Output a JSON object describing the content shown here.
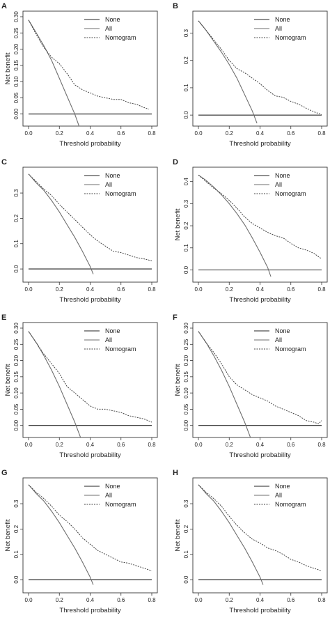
{
  "chart_data": [
    {
      "panel": "A",
      "type": "line",
      "xlabel": "Threshold probability",
      "ylabel": "Net benefit",
      "xlim": [
        0,
        0.8
      ],
      "ylim": [
        -0.02,
        0.3
      ],
      "xticks": [
        0.0,
        0.2,
        0.4,
        0.6,
        0.8
      ],
      "xtick_labels": [
        "0.0",
        "0.2",
        "0.4",
        "0.6",
        "0.8"
      ],
      "yticks": [
        0.0,
        0.05,
        0.1,
        0.15,
        0.2,
        0.25,
        0.3
      ],
      "ytick_labels": [
        "0.00",
        "0.05",
        "0.10",
        "0.15",
        "0.20",
        "0.25",
        "0.30"
      ],
      "legend": "top-right",
      "series": [
        {
          "name": "None",
          "style": "solid",
          "x": [
            0.0,
            0.8
          ],
          "y": [
            0.0,
            0.0
          ]
        },
        {
          "name": "All",
          "style": "solid-gray",
          "x": [
            0.0,
            0.05,
            0.1,
            0.15,
            0.2,
            0.25,
            0.3,
            0.33
          ],
          "y": [
            0.29,
            0.25,
            0.21,
            0.165,
            0.11,
            0.055,
            0.0,
            -0.04
          ]
        },
        {
          "name": "Nomogram",
          "style": "dashed",
          "x": [
            0.0,
            0.05,
            0.1,
            0.15,
            0.2,
            0.25,
            0.3,
            0.35,
            0.4,
            0.45,
            0.5,
            0.55,
            0.6,
            0.65,
            0.7,
            0.75,
            0.78
          ],
          "y": [
            0.29,
            0.245,
            0.205,
            0.175,
            0.155,
            0.125,
            0.09,
            0.075,
            0.065,
            0.055,
            0.05,
            0.045,
            0.045,
            0.035,
            0.03,
            0.02,
            0.015
          ]
        }
      ]
    },
    {
      "panel": "B",
      "type": "line",
      "xlabel": "Threshold probability",
      "ylabel": "",
      "xlim": [
        0,
        0.8
      ],
      "ylim": [
        -0.02,
        0.36
      ],
      "xticks": [
        0.0,
        0.2,
        0.4,
        0.6,
        0.8
      ],
      "xtick_labels": [
        "0.0",
        "0.2",
        "0.4",
        "0.6",
        "0.8"
      ],
      "yticks": [
        0.0,
        0.1,
        0.2,
        0.3
      ],
      "ytick_labels": [
        "0.0",
        "0.1",
        "0.2",
        "0.3"
      ],
      "legend": "top-right",
      "series": [
        {
          "name": "None",
          "style": "solid",
          "x": [
            0.0,
            0.8
          ],
          "y": [
            0.0,
            0.0
          ]
        },
        {
          "name": "All",
          "style": "solid-gray",
          "x": [
            0.0,
            0.05,
            0.1,
            0.15,
            0.2,
            0.25,
            0.3,
            0.35,
            0.38
          ],
          "y": [
            0.345,
            0.31,
            0.27,
            0.23,
            0.185,
            0.135,
            0.075,
            0.015,
            -0.03
          ]
        },
        {
          "name": "Nomogram",
          "style": "dashed",
          "x": [
            0.0,
            0.05,
            0.1,
            0.15,
            0.2,
            0.25,
            0.3,
            0.35,
            0.4,
            0.45,
            0.5,
            0.55,
            0.6,
            0.65,
            0.7,
            0.75,
            0.8
          ],
          "y": [
            0.345,
            0.31,
            0.275,
            0.24,
            0.2,
            0.17,
            0.155,
            0.135,
            0.115,
            0.09,
            0.07,
            0.065,
            0.05,
            0.04,
            0.025,
            0.012,
            0.002
          ]
        }
      ]
    },
    {
      "panel": "C",
      "type": "line",
      "xlabel": "Threshold probability",
      "ylabel": "",
      "xlim": [
        0,
        0.8
      ],
      "ylim": [
        -0.03,
        0.38
      ],
      "xticks": [
        0.0,
        0.2,
        0.4,
        0.6,
        0.8
      ],
      "xtick_labels": [
        "0.0",
        "0.2",
        "0.4",
        "0.6",
        "0.8"
      ],
      "yticks": [
        0.0,
        0.1,
        0.2,
        0.3
      ],
      "ytick_labels": [
        "0.0",
        "0.1",
        "0.2",
        "0.3"
      ],
      "legend": "top-right",
      "series": [
        {
          "name": "None",
          "style": "solid",
          "x": [
            0.0,
            0.8
          ],
          "y": [
            0.0,
            0.0
          ]
        },
        {
          "name": "All",
          "style": "solid-gray",
          "x": [
            0.0,
            0.05,
            0.1,
            0.15,
            0.2,
            0.25,
            0.3,
            0.35,
            0.4,
            0.42
          ],
          "y": [
            0.375,
            0.34,
            0.31,
            0.27,
            0.225,
            0.175,
            0.125,
            0.07,
            0.01,
            -0.02
          ]
        },
        {
          "name": "Nomogram",
          "style": "dashed",
          "x": [
            0.0,
            0.05,
            0.1,
            0.15,
            0.2,
            0.25,
            0.3,
            0.35,
            0.4,
            0.45,
            0.5,
            0.55,
            0.6,
            0.65,
            0.7,
            0.75,
            0.8
          ],
          "y": [
            0.375,
            0.345,
            0.315,
            0.29,
            0.255,
            0.225,
            0.195,
            0.165,
            0.135,
            0.11,
            0.09,
            0.07,
            0.065,
            0.055,
            0.045,
            0.04,
            0.032
          ]
        }
      ]
    },
    {
      "panel": "D",
      "type": "line",
      "xlabel": "Threshold probability",
      "ylabel": "Net benefit",
      "xlim": [
        0,
        0.8
      ],
      "ylim": [
        -0.03,
        0.44
      ],
      "xticks": [
        0.0,
        0.2,
        0.4,
        0.6,
        0.8
      ],
      "xtick_labels": [
        "0.0",
        "0.2",
        "0.4",
        "0.6",
        "0.8"
      ],
      "yticks": [
        0.0,
        0.1,
        0.2,
        0.3,
        0.4
      ],
      "ytick_labels": [
        "0.0",
        "0.1",
        "0.2",
        "0.3",
        "0.4"
      ],
      "legend": "top-right",
      "series": [
        {
          "name": "None",
          "style": "solid",
          "x": [
            0.0,
            0.8
          ],
          "y": [
            0.0,
            0.0
          ]
        },
        {
          "name": "All",
          "style": "solid-gray",
          "x": [
            0.0,
            0.05,
            0.1,
            0.15,
            0.2,
            0.25,
            0.3,
            0.35,
            0.4,
            0.45,
            0.47
          ],
          "y": [
            0.43,
            0.405,
            0.375,
            0.34,
            0.3,
            0.255,
            0.205,
            0.145,
            0.08,
            0.01,
            -0.03
          ]
        },
        {
          "name": "Nomogram",
          "style": "dashed",
          "x": [
            0.0,
            0.05,
            0.1,
            0.15,
            0.2,
            0.25,
            0.3,
            0.35,
            0.4,
            0.45,
            0.5,
            0.55,
            0.6,
            0.65,
            0.7,
            0.75,
            0.8
          ],
          "y": [
            0.43,
            0.4,
            0.37,
            0.345,
            0.315,
            0.28,
            0.24,
            0.21,
            0.19,
            0.17,
            0.155,
            0.145,
            0.12,
            0.1,
            0.09,
            0.075,
            0.05
          ]
        }
      ]
    },
    {
      "panel": "E",
      "type": "line",
      "xlabel": "Threshold probability",
      "ylabel": "Net benefit",
      "xlim": [
        0,
        0.8
      ],
      "ylim": [
        -0.02,
        0.3
      ],
      "xticks": [
        0.0,
        0.2,
        0.4,
        0.6,
        0.8
      ],
      "xtick_labels": [
        "0.0",
        "0.2",
        "0.4",
        "0.6",
        "0.8"
      ],
      "yticks": [
        0.0,
        0.05,
        0.1,
        0.15,
        0.2,
        0.25,
        0.3
      ],
      "ytick_labels": [
        "0.00",
        "0.05",
        "0.10",
        "0.15",
        "0.20",
        "0.25",
        "0.30"
      ],
      "legend": "top-right",
      "series": [
        {
          "name": "None",
          "style": "solid",
          "x": [
            0.0,
            0.8
          ],
          "y": [
            0.0,
            0.0
          ]
        },
        {
          "name": "All",
          "style": "solid-gray",
          "x": [
            0.0,
            0.05,
            0.1,
            0.15,
            0.2,
            0.25,
            0.3,
            0.34
          ],
          "y": [
            0.29,
            0.255,
            0.215,
            0.17,
            0.12,
            0.065,
            0.01,
            -0.04
          ]
        },
        {
          "name": "Nomogram",
          "style": "dashed",
          "x": [
            0.0,
            0.05,
            0.1,
            0.15,
            0.2,
            0.25,
            0.3,
            0.35,
            0.4,
            0.45,
            0.5,
            0.55,
            0.6,
            0.65,
            0.7,
            0.75,
            0.8
          ],
          "y": [
            0.29,
            0.255,
            0.22,
            0.19,
            0.16,
            0.12,
            0.1,
            0.08,
            0.06,
            0.05,
            0.05,
            0.045,
            0.04,
            0.03,
            0.025,
            0.02,
            0.01
          ]
        }
      ]
    },
    {
      "panel": "F",
      "type": "line",
      "xlabel": "Threshold probability",
      "ylabel": "Net benefit",
      "xlim": [
        0,
        0.8
      ],
      "ylim": [
        -0.02,
        0.3
      ],
      "xticks": [
        0.0,
        0.2,
        0.4,
        0.6,
        0.8
      ],
      "xtick_labels": [
        "0.0",
        "0.2",
        "0.4",
        "0.6",
        "0.8"
      ],
      "yticks": [
        0.0,
        0.05,
        0.1,
        0.15,
        0.2,
        0.25,
        0.3
      ],
      "ytick_labels": [
        "0.00",
        "0.05",
        "0.10",
        "0.15",
        "0.20",
        "0.25",
        "0.30"
      ],
      "legend": "top-right",
      "series": [
        {
          "name": "None",
          "style": "solid",
          "x": [
            0.0,
            0.8
          ],
          "y": [
            0.0,
            0.0
          ]
        },
        {
          "name": "All",
          "style": "solid-gray",
          "x": [
            0.0,
            0.05,
            0.1,
            0.15,
            0.2,
            0.25,
            0.3,
            0.34
          ],
          "y": [
            0.29,
            0.255,
            0.215,
            0.17,
            0.12,
            0.065,
            0.01,
            -0.04
          ]
        },
        {
          "name": "Nomogram",
          "style": "dashed",
          "x": [
            0.0,
            0.05,
            0.1,
            0.15,
            0.2,
            0.25,
            0.3,
            0.35,
            0.4,
            0.45,
            0.5,
            0.55,
            0.6,
            0.65,
            0.7,
            0.75,
            0.78,
            0.8
          ],
          "y": [
            0.29,
            0.255,
            0.225,
            0.19,
            0.15,
            0.125,
            0.11,
            0.095,
            0.085,
            0.075,
            0.06,
            0.05,
            0.04,
            0.03,
            0.015,
            0.01,
            0.005,
            0.015
          ]
        }
      ]
    },
    {
      "panel": "G",
      "type": "line",
      "xlabel": "Threshold probability",
      "ylabel": "Net benefit",
      "xlim": [
        0,
        0.8
      ],
      "ylim": [
        -0.03,
        0.38
      ],
      "xticks": [
        0.0,
        0.2,
        0.4,
        0.6,
        0.8
      ],
      "xtick_labels": [
        "0.0",
        "0.2",
        "0.4",
        "0.6",
        "0.8"
      ],
      "yticks": [
        0.0,
        0.1,
        0.2,
        0.3
      ],
      "ytick_labels": [
        "0.0",
        "0.1",
        "0.2",
        "0.3"
      ],
      "legend": "top-right",
      "series": [
        {
          "name": "None",
          "style": "solid",
          "x": [
            0.0,
            0.8
          ],
          "y": [
            0.0,
            0.0
          ]
        },
        {
          "name": "All",
          "style": "solid-gray",
          "x": [
            0.0,
            0.05,
            0.1,
            0.15,
            0.2,
            0.25,
            0.3,
            0.35,
            0.4,
            0.42
          ],
          "y": [
            0.375,
            0.34,
            0.31,
            0.27,
            0.225,
            0.175,
            0.125,
            0.07,
            0.01,
            -0.02
          ]
        },
        {
          "name": "Nomogram",
          "style": "dashed",
          "x": [
            0.0,
            0.05,
            0.1,
            0.15,
            0.2,
            0.25,
            0.3,
            0.35,
            0.4,
            0.45,
            0.5,
            0.55,
            0.6,
            0.65,
            0.7,
            0.75,
            0.8
          ],
          "y": [
            0.375,
            0.345,
            0.32,
            0.29,
            0.255,
            0.23,
            0.2,
            0.165,
            0.14,
            0.115,
            0.1,
            0.085,
            0.07,
            0.065,
            0.055,
            0.045,
            0.035
          ]
        }
      ]
    },
    {
      "panel": "H",
      "type": "line",
      "xlabel": "Threshold probability",
      "ylabel": "Net benefit",
      "xlim": [
        0,
        0.8
      ],
      "ylim": [
        -0.03,
        0.38
      ],
      "xticks": [
        0.0,
        0.2,
        0.4,
        0.6,
        0.8
      ],
      "xtick_labels": [
        "0.0",
        "0.2",
        "0.4",
        "0.6",
        "0.8"
      ],
      "yticks": [
        0.0,
        0.1,
        0.2,
        0.3
      ],
      "ytick_labels": [
        "0.0",
        "0.1",
        "0.2",
        "0.3"
      ],
      "legend": "top-right",
      "series": [
        {
          "name": "None",
          "style": "solid",
          "x": [
            0.0,
            0.8
          ],
          "y": [
            0.0,
            0.0
          ]
        },
        {
          "name": "All",
          "style": "solid-gray",
          "x": [
            0.0,
            0.05,
            0.1,
            0.15,
            0.2,
            0.25,
            0.3,
            0.35,
            0.4,
            0.42
          ],
          "y": [
            0.375,
            0.34,
            0.31,
            0.27,
            0.225,
            0.175,
            0.125,
            0.07,
            0.01,
            -0.02
          ]
        },
        {
          "name": "Nomogram",
          "style": "dashed",
          "x": [
            0.0,
            0.05,
            0.1,
            0.15,
            0.2,
            0.25,
            0.3,
            0.35,
            0.4,
            0.45,
            0.5,
            0.55,
            0.6,
            0.65,
            0.7,
            0.75,
            0.8
          ],
          "y": [
            0.375,
            0.345,
            0.32,
            0.29,
            0.25,
            0.215,
            0.185,
            0.16,
            0.145,
            0.125,
            0.115,
            0.1,
            0.08,
            0.07,
            0.055,
            0.045,
            0.035
          ]
        }
      ]
    }
  ],
  "colors": {
    "none": "#222222",
    "all": "#6e6e6e",
    "nomogram": "#444444"
  }
}
